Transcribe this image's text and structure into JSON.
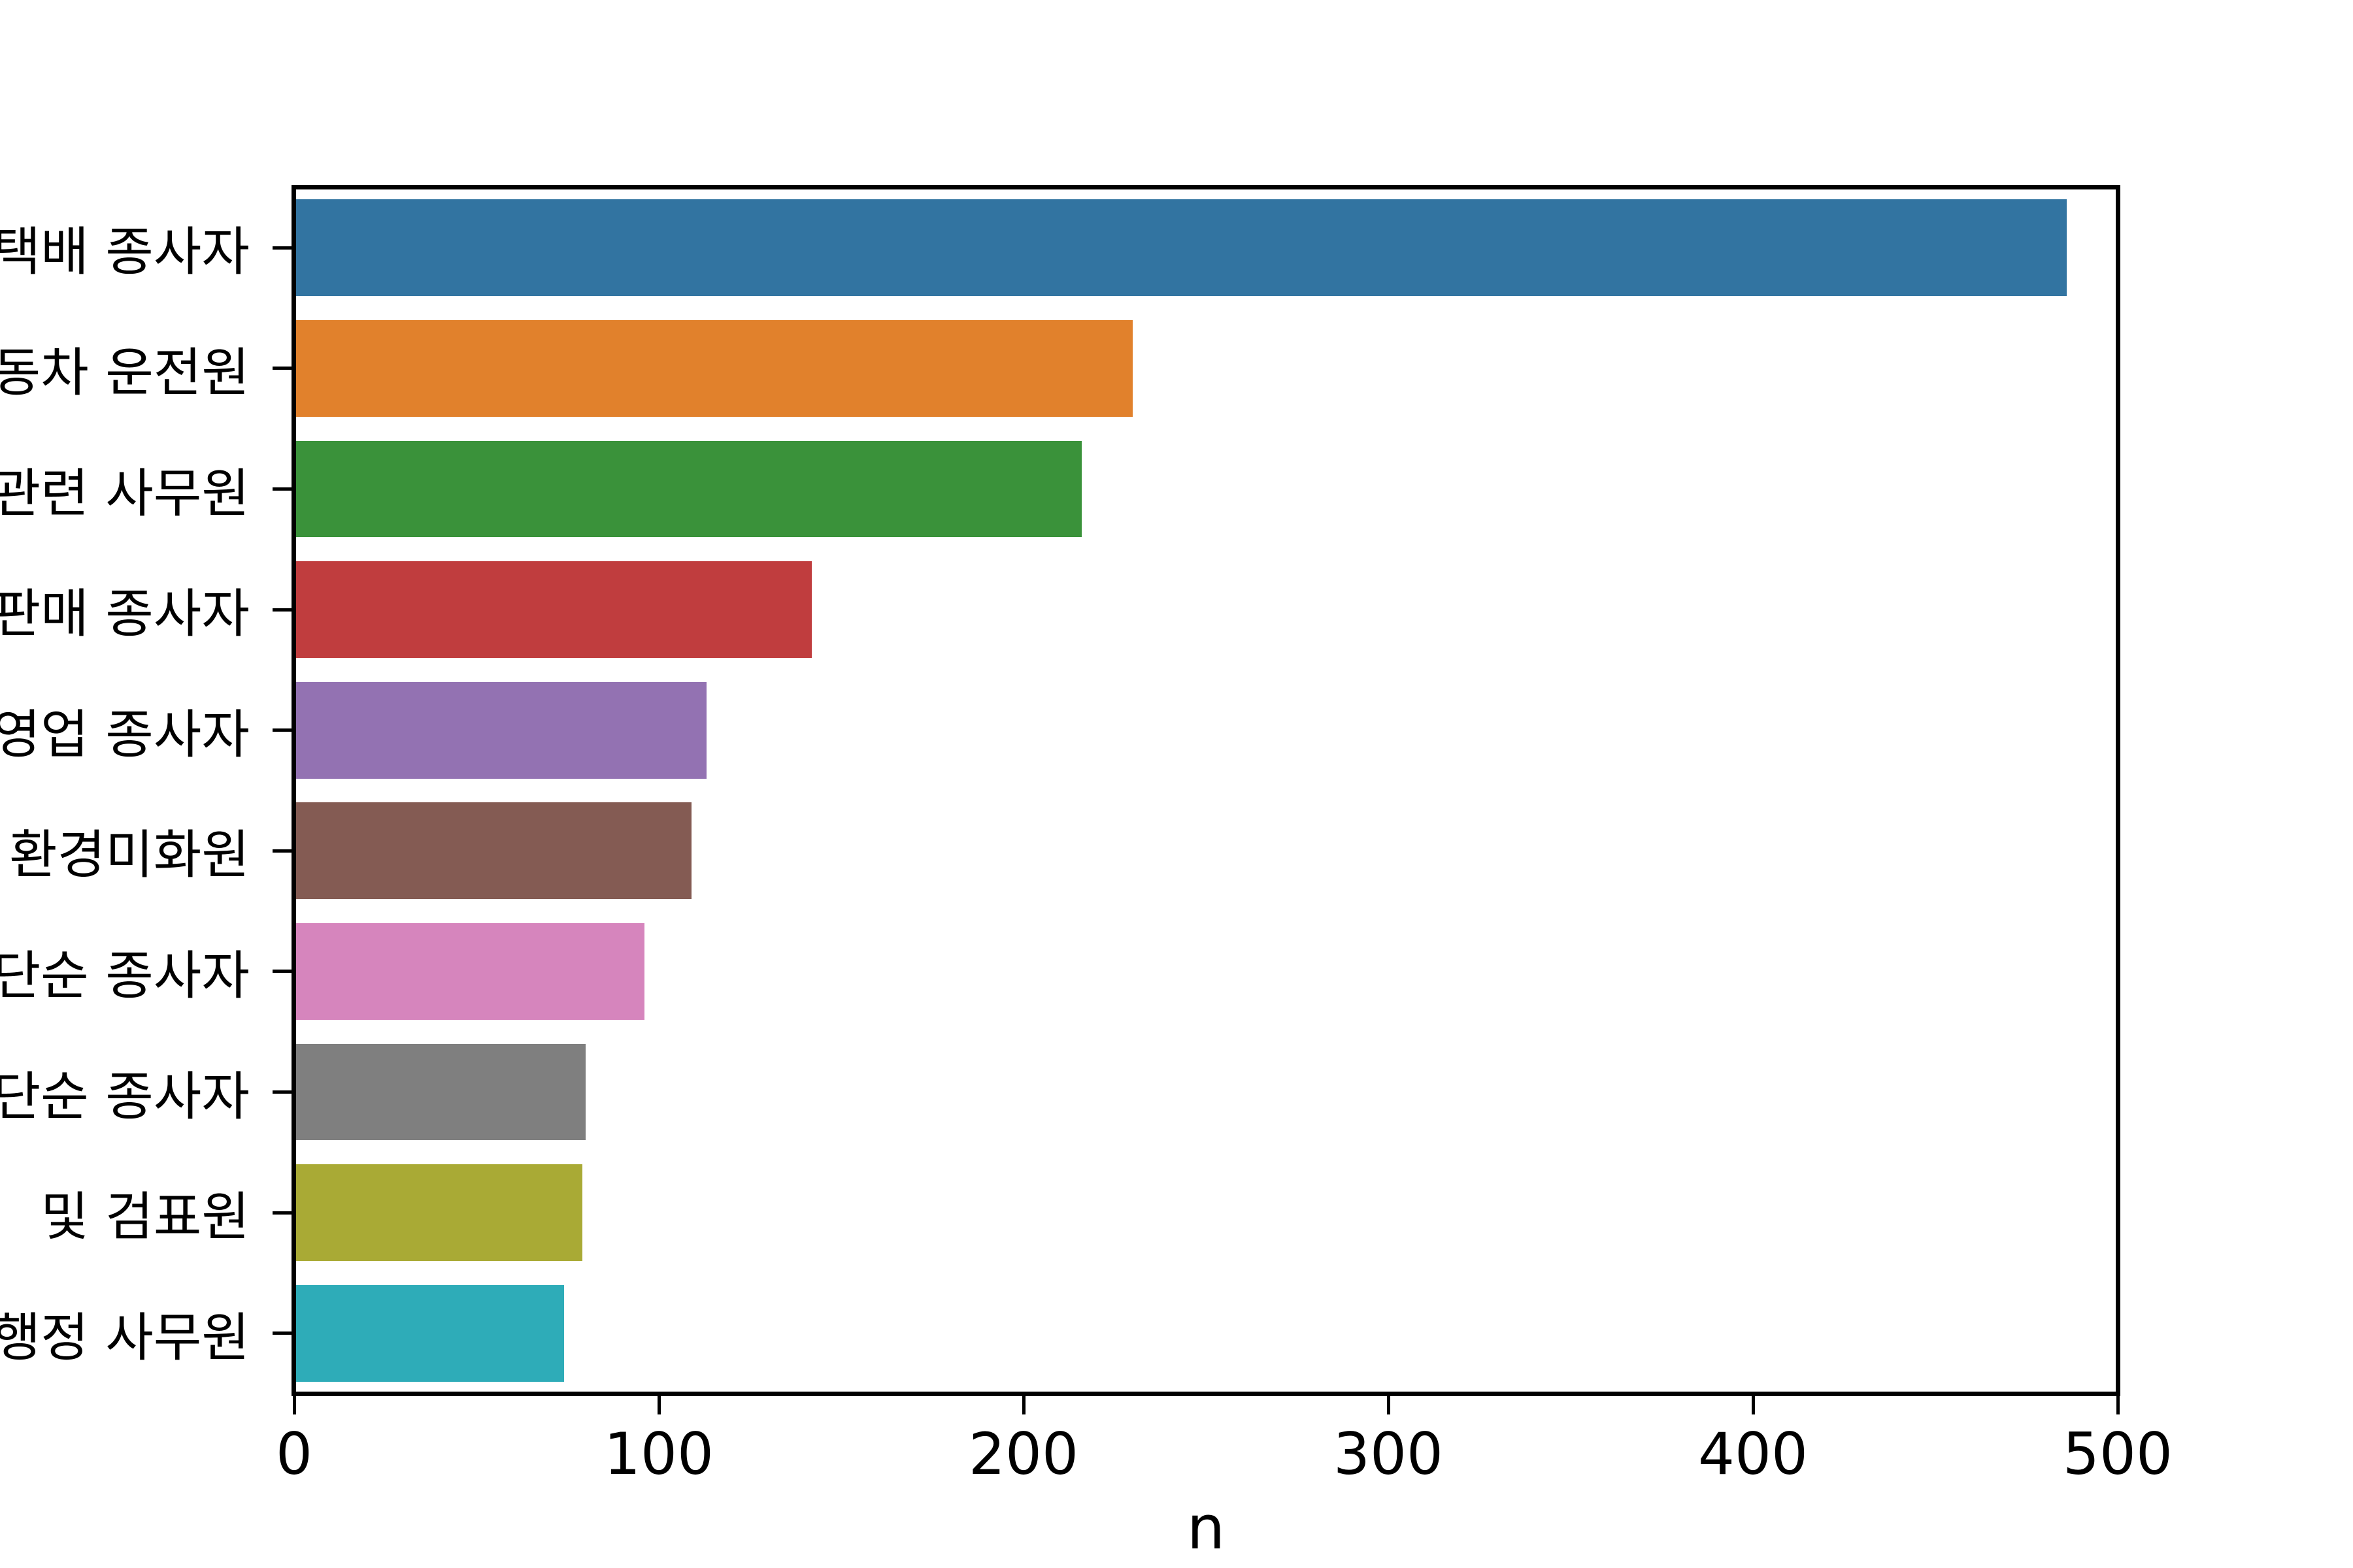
{
  "chart_data": {
    "type": "bar",
    "orientation": "horizontal",
    "title": "",
    "xlabel": "n",
    "ylabel": "",
    "xlim": [
      0,
      500
    ],
    "x_ticks": [
      "0",
      "100",
      "200",
      "300",
      "400",
      "500"
    ],
    "grid": false,
    "legend": false,
    "labels_clipped_at_left_edge": true,
    "categories": [
      "택배 종사자",
      "동차 운전원",
      "관련 사무원",
      "판매 종사자",
      "영업 종사자",
      "환경미화원",
      "단순 종사자",
      "단순 종사자",
      "및 검표원",
      "행정 사무원"
    ],
    "values": [
      486,
      230,
      216,
      142,
      113,
      109,
      96,
      80,
      79,
      74
    ],
    "bar_colors": [
      "#3274a1",
      "#e1812c",
      "#3a923a",
      "#c03d3e",
      "#9372b2",
      "#845b53",
      "#d685bd",
      "#7f7f7f",
      "#a9aa35",
      "#2eacb8"
    ],
    "axis_color": "#000000",
    "background_color": "#ffffff"
  }
}
